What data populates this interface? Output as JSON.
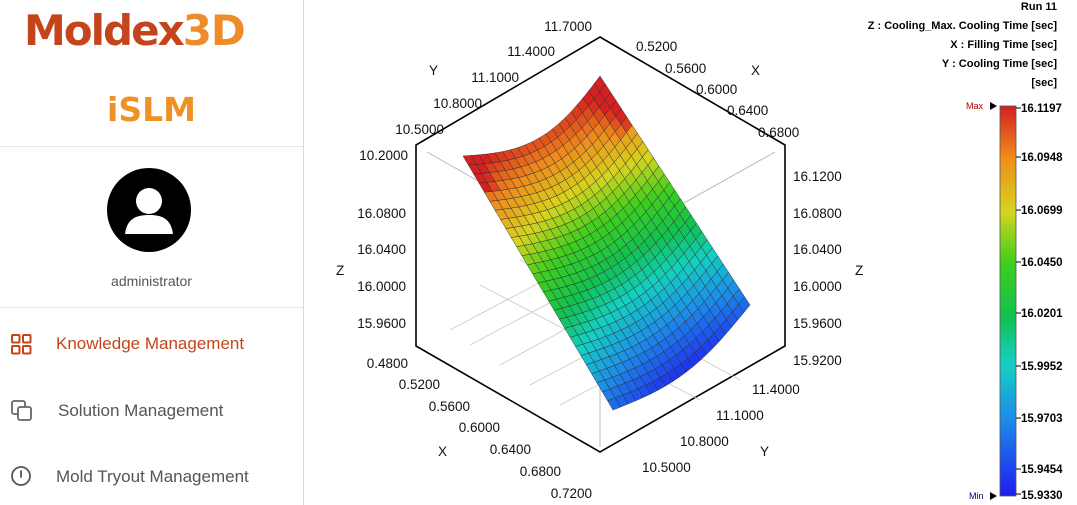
{
  "brand": {
    "logo_main": "Moldex",
    "logo_suffix": "3D",
    "product": "iSLM",
    "logo_color": "#c4441b",
    "logo_accent": "#ee8b2b",
    "product_color": "#ef9124"
  },
  "user": {
    "name": "administrator",
    "avatar_icon": "user-avatar-icon"
  },
  "nav": [
    {
      "label": "Knowledge Management",
      "icon": "grid-icon",
      "active": true
    },
    {
      "label": "Solution Management",
      "icon": "copy-icon",
      "active": false
    },
    {
      "label": "Mold Tryout Management",
      "icon": "clock-icon",
      "active": false
    }
  ],
  "plot": {
    "run": "Run 11",
    "header_lines": [
      "Z : Cooling_Max. Cooling Time [sec]",
      "X : Filling Time [sec]",
      "Y : Cooling Time [sec]",
      "[sec]"
    ],
    "axis_letters": {
      "x": "X",
      "y": "Y",
      "z": "Z"
    },
    "top_y_ticks": [
      "11.7000",
      "11.4000",
      "11.1000",
      "10.8000",
      "10.5000",
      "10.2000"
    ],
    "top_x_ticks": [
      "0.5200",
      "0.5600",
      "0.6000",
      "0.6400",
      "0.6800"
    ],
    "left_z_ticks": [
      "16.0800",
      "16.0400",
      "16.0000",
      "15.9600"
    ],
    "right_z_ticks": [
      "16.1200",
      "16.0800",
      "16.0400",
      "16.0000",
      "15.9600",
      "15.9200"
    ],
    "bottom_x_ticks": [
      "0.4800",
      "0.5200",
      "0.5600",
      "0.6000",
      "0.6400",
      "0.6800",
      "0.7200"
    ],
    "bottom_y_ticks": [
      "11.4000",
      "11.1000",
      "10.8000",
      "10.5000"
    ],
    "colorbar": {
      "max_label": "Max",
      "min_label": "Min",
      "values": [
        "16.1197",
        "16.0948",
        "16.0699",
        "16.0450",
        "16.0201",
        "15.9952",
        "15.9703",
        "15.9454",
        "15.9330"
      ],
      "max_color": "#b00000",
      "min_color": "#00007a"
    }
  }
}
